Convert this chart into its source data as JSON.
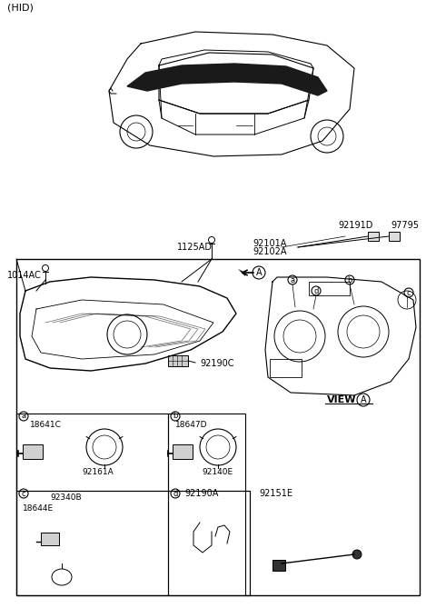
{
  "title": "(HID)",
  "bg_color": "#ffffff",
  "border_color": "#000000",
  "text_color": "#000000",
  "fig_width": 4.8,
  "fig_height": 6.69,
  "dpi": 100,
  "labels": {
    "hid": "(HID)",
    "1125AD": "1125AD",
    "1014AC": "1014AC",
    "92101A": "92101A",
    "92102A": "92102A",
    "92191D": "92191D",
    "97795": "97795",
    "92190C": "92190C",
    "view_a": "VIEW",
    "a_label": "a",
    "b_label": "b",
    "c_label": "c",
    "d_label": "d",
    "18641C": "18641C",
    "92161A": "92161A",
    "18647D": "18647D",
    "92140E": "92140E",
    "92340B": "92340B",
    "18644E": "18644E",
    "92190A": "92190A",
    "92151E": "92151E"
  }
}
